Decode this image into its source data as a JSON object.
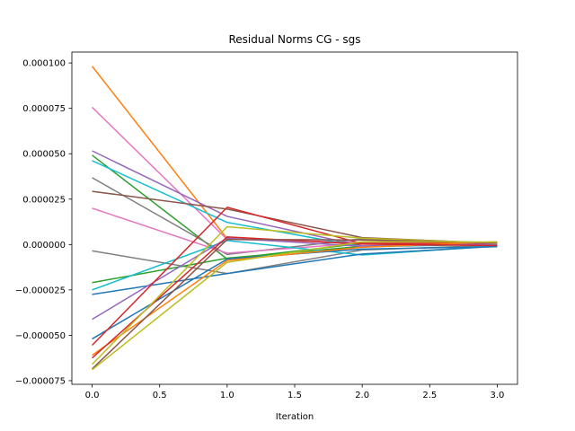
{
  "chart_data": {
    "type": "line",
    "title": "Residual Norms CG - sgs",
    "xlabel": "Iteration",
    "ylabel": "",
    "xlim": [
      -0.15,
      3.15
    ],
    "ylim": [
      -7.7e-05,
      0.000106
    ],
    "grid": false,
    "legend": "none",
    "x": [
      0,
      1,
      2,
      3
    ],
    "x_ticks": [
      0.0,
      0.5,
      1.0,
      1.5,
      2.0,
      2.5,
      3.0
    ],
    "x_tick_labels": [
      "0.0",
      "0.5",
      "1.0",
      "1.5",
      "2.0",
      "2.5",
      "3.0"
    ],
    "y_ticks": [
      -7.5e-05,
      -5e-05,
      -2.5e-05,
      0.0,
      2.5e-05,
      5e-05,
      7.5e-05,
      0.0001
    ],
    "y_tick_labels": [
      "−0.000075",
      "−0.000050",
      "−0.000025",
      "0.000000",
      "0.000025",
      "0.000050",
      "0.000075",
      "0.000100"
    ],
    "series": [
      {
        "color": "#ff7f0e",
        "values": [
          9.82e-05,
          3.2e-06,
          8e-07,
          1e-06
        ]
      },
      {
        "color": "#e377c2",
        "values": [
          7.56e-05,
          2.8e-06,
          1.2e-06,
          2e-07
        ]
      },
      {
        "color": "#9467bd",
        "values": [
          5.16e-05,
          1.55e-05,
          -8e-07,
          4e-07
        ]
      },
      {
        "color": "#2ca02c",
        "values": [
          4.92e-05,
          -8e-06,
          6e-07,
          -5e-07
        ]
      },
      {
        "color": "#17becf",
        "values": [
          4.62e-05,
          1.22e-05,
          -1.2e-06,
          1e-07
        ]
      },
      {
        "color": "#7f7f7f",
        "values": [
          3.68e-05,
          -5.5e-06,
          3.2e-06,
          -3e-07
        ]
      },
      {
        "color": "#8c564b",
        "values": [
          2.93e-05,
          1.95e-05,
          3.8e-06,
          6e-07
        ]
      },
      {
        "color": "#e377c2",
        "values": [
          2e-05,
          -4.8e-06,
          9e-07,
          -2e-07
        ]
      },
      {
        "color": "#7f7f7f",
        "values": [
          -3.5e-06,
          -1.6e-05,
          -3e-06,
          -4e-07
        ]
      },
      {
        "color": "#2ca02c",
        "values": [
          -2.1e-05,
          -7.5e-06,
          -1e-06,
          2e-07
        ]
      },
      {
        "color": "#17becf",
        "values": [
          -2.5e-05,
          2.2e-06,
          -5.8e-06,
          -8e-07
        ]
      },
      {
        "color": "#1f77b4",
        "values": [
          -2.75e-05,
          -1.6e-05,
          -5.2e-06,
          -1e-06
        ]
      },
      {
        "color": "#9467bd",
        "values": [
          -4.12e-05,
          3.5e-06,
          -1e-06,
          3e-07
        ]
      },
      {
        "color": "#1f77b4",
        "values": [
          -5.2e-05,
          -8e-06,
          -2.5e-06,
          -1.2e-06
        ]
      },
      {
        "color": "#d62728",
        "values": [
          -5.55e-05,
          2.05e-05,
          5e-07,
          9e-07
        ]
      },
      {
        "color": "#ff7f0e",
        "values": [
          -6.1e-05,
          -8.8e-06,
          -1.5e-06,
          1.5e-06
        ]
      },
      {
        "color": "#d62728",
        "values": [
          -6.25e-05,
          4.2e-06,
          2e-07,
          -6e-07
        ]
      },
      {
        "color": "#bcbd22",
        "values": [
          -6.6e-05,
          9.8e-06,
          3.5e-06,
          8e-07
        ]
      },
      {
        "color": "#8c564b",
        "values": [
          -6.85e-05,
          2.8e-06,
          2.5e-06,
          1e-06
        ]
      },
      {
        "color": "#bcbd22",
        "values": [
          -6.9e-05,
          -9.8e-06,
          1.5e-06,
          1.4e-06
        ]
      }
    ]
  }
}
